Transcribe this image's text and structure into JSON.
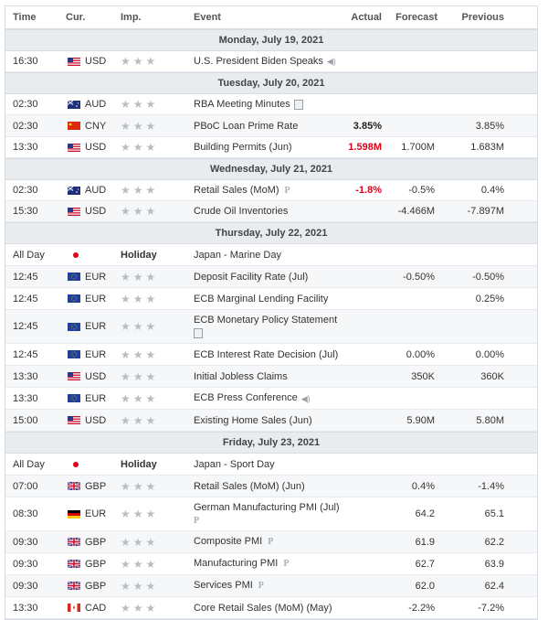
{
  "header": {
    "time": "Time",
    "cur": "Cur.",
    "imp": "Imp.",
    "event": "Event",
    "actual": "Actual",
    "forecast": "Forecast",
    "previous": "Previous"
  },
  "sections": [
    {
      "day": "Monday, July 19, 2021",
      "rows": [
        {
          "time": "16:30",
          "flag": "us",
          "cur": "USD",
          "event": "U.S. President Biden Speaks",
          "icon": "speaker",
          "actual": "",
          "actual_color": "",
          "forecast": "",
          "previous": ""
        }
      ]
    },
    {
      "day": "Tuesday, July 20, 2021",
      "rows": [
        {
          "time": "02:30",
          "flag": "au",
          "cur": "AUD",
          "event": "RBA Meeting Minutes",
          "icon": "doc",
          "actual": "",
          "actual_color": "",
          "forecast": "",
          "previous": ""
        },
        {
          "time": "02:30",
          "flag": "cn",
          "cur": "CNY",
          "event": "PBoC Loan Prime Rate",
          "icon": "",
          "actual": "3.85%",
          "actual_color": "black",
          "forecast": "",
          "previous": "3.85%"
        },
        {
          "time": "13:30",
          "flag": "us",
          "cur": "USD",
          "event": "Building Permits (Jun)",
          "icon": "",
          "actual": "1.598M",
          "actual_color": "red",
          "forecast": "1.700M",
          "previous": "1.683M"
        }
      ]
    },
    {
      "day": "Wednesday, July 21, 2021",
      "rows": [
        {
          "time": "02:30",
          "flag": "au",
          "cur": "AUD",
          "event": "Retail Sales (MoM)",
          "icon": "p",
          "actual": "-1.8%",
          "actual_color": "red",
          "forecast": "-0.5%",
          "previous": "0.4%"
        },
        {
          "time": "15:30",
          "flag": "us",
          "cur": "USD",
          "event": "Crude Oil Inventories",
          "icon": "",
          "actual": "",
          "actual_color": "",
          "forecast": "-4.466M",
          "previous": "-7.897M"
        }
      ]
    },
    {
      "day": "Thursday, July 22, 2021",
      "rows": [
        {
          "time": "All Day",
          "flag": "jp",
          "cur": "",
          "holiday": "Holiday",
          "event": "Japan - Marine Day",
          "icon": "",
          "actual": "",
          "actual_color": "",
          "forecast": "",
          "previous": ""
        },
        {
          "time": "12:45",
          "flag": "eu",
          "cur": "EUR",
          "event": "Deposit Facility Rate (Jul)",
          "icon": "",
          "actual": "",
          "actual_color": "",
          "forecast": "-0.50%",
          "previous": "-0.50%"
        },
        {
          "time": "12:45",
          "flag": "eu",
          "cur": "EUR",
          "event": "ECB Marginal Lending Facility",
          "icon": "",
          "actual": "",
          "actual_color": "",
          "forecast": "",
          "previous": "0.25%"
        },
        {
          "time": "12:45",
          "flag": "eu",
          "cur": "EUR",
          "event": "ECB Monetary Policy Statement",
          "icon": "doc2",
          "actual": "",
          "actual_color": "",
          "forecast": "",
          "previous": ""
        },
        {
          "time": "12:45",
          "flag": "eu",
          "cur": "EUR",
          "event": "ECB Interest Rate Decision (Jul)",
          "icon": "",
          "actual": "",
          "actual_color": "",
          "forecast": "0.00%",
          "previous": "0.00%"
        },
        {
          "time": "13:30",
          "flag": "us",
          "cur": "USD",
          "event": "Initial Jobless Claims",
          "icon": "",
          "actual": "",
          "actual_color": "",
          "forecast": "350K",
          "previous": "360K"
        },
        {
          "time": "13:30",
          "flag": "eu",
          "cur": "EUR",
          "event": "ECB Press Conference",
          "icon": "speaker",
          "actual": "",
          "actual_color": "",
          "forecast": "",
          "previous": ""
        },
        {
          "time": "15:00",
          "flag": "us",
          "cur": "USD",
          "event": "Existing Home Sales (Jun)",
          "icon": "",
          "actual": "",
          "actual_color": "",
          "forecast": "5.90M",
          "previous": "5.80M"
        }
      ]
    },
    {
      "day": "Friday, July 23, 2021",
      "rows": [
        {
          "time": "All Day",
          "flag": "jp",
          "cur": "",
          "holiday": "Holiday",
          "event": "Japan - Sport Day",
          "icon": "",
          "actual": "",
          "actual_color": "",
          "forecast": "",
          "previous": ""
        },
        {
          "time": "07:00",
          "flag": "gb",
          "cur": "GBP",
          "event": "Retail Sales (MoM) (Jun)",
          "icon": "",
          "actual": "",
          "actual_color": "",
          "forecast": "0.4%",
          "previous": "-1.4%"
        },
        {
          "time": "08:30",
          "flag": "de",
          "cur": "EUR",
          "event": "German Manufacturing PMI (Jul)",
          "icon": "p2",
          "actual": "",
          "actual_color": "",
          "forecast": "64.2",
          "previous": "65.1"
        },
        {
          "time": "09:30",
          "flag": "gb",
          "cur": "GBP",
          "event": "Composite PMI",
          "icon": "p",
          "actual": "",
          "actual_color": "",
          "forecast": "61.9",
          "previous": "62.2"
        },
        {
          "time": "09:30",
          "flag": "gb",
          "cur": "GBP",
          "event": "Manufacturing PMI",
          "icon": "p",
          "actual": "",
          "actual_color": "",
          "forecast": "62.7",
          "previous": "63.9"
        },
        {
          "time": "09:30",
          "flag": "gb",
          "cur": "GBP",
          "event": "Services PMI",
          "icon": "p",
          "actual": "",
          "actual_color": "",
          "forecast": "62.0",
          "previous": "62.4"
        },
        {
          "time": "13:30",
          "flag": "ca",
          "cur": "CAD",
          "event": "Core Retail Sales (MoM) (May)",
          "icon": "",
          "actual": "",
          "actual_color": "",
          "forecast": "-2.2%",
          "previous": "-7.2%"
        }
      ]
    }
  ]
}
